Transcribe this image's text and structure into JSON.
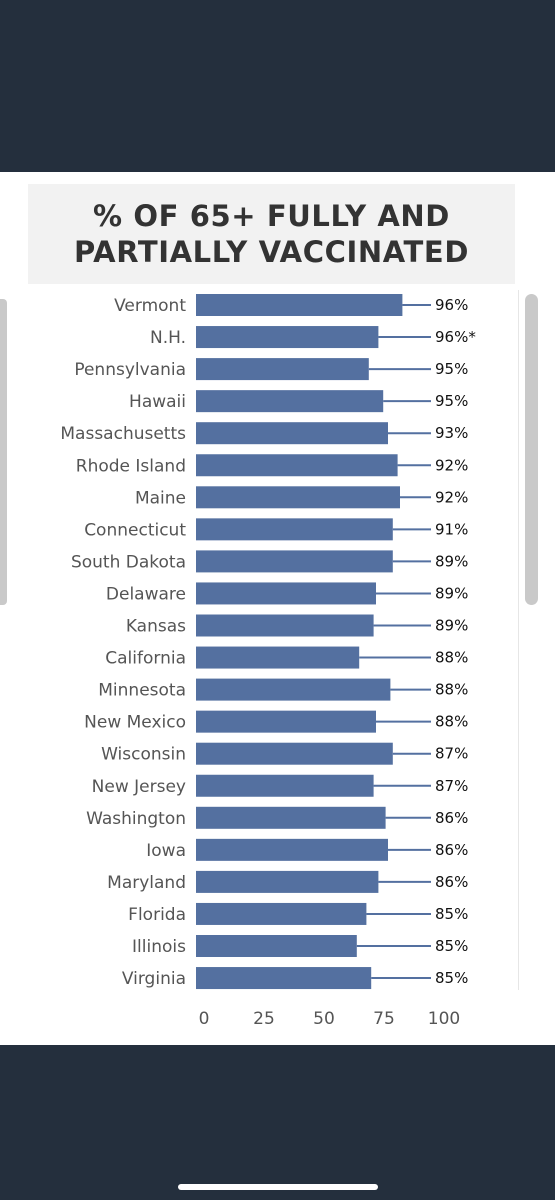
{
  "colors": {
    "background": "#242f3d",
    "panel": "#ffffff",
    "title_box": "#f2f2f2",
    "bar": "#5470a0",
    "scrollbar": "#c9c9c9"
  },
  "chart_data": {
    "type": "bar",
    "orientation": "horizontal",
    "title": "% OF 65+ FULLY AND PARTIALLY VACCINATED",
    "title_lines": [
      "% OF 65+ FULLY AND",
      "PARTIALLY VACCINATED"
    ],
    "categories": [
      "Vermont",
      "N.H.",
      "Pennsylvania",
      "Hawaii",
      "Massachusetts",
      "Rhode Island",
      "Maine",
      "Connecticut",
      "South Dakota",
      "Delaware",
      "Kansas",
      "California",
      "Minnesota",
      "New Mexico",
      "Wisconsin",
      "New Jersey",
      "Washington",
      "Iowa",
      "Maryland",
      "Florida",
      "Illinois",
      "Virginia"
    ],
    "values": [
      86,
      76,
      72,
      78,
      80,
      84,
      85,
      82,
      82,
      75,
      74,
      68,
      81,
      75,
      82,
      74,
      79,
      80,
      76,
      71,
      67,
      73
    ],
    "value_labels": [
      "96%",
      "96%*",
      "95%",
      "95%",
      "93%",
      "92%",
      "92%",
      "91%",
      "89%",
      "89%",
      "89%",
      "88%",
      "88%",
      "88%",
      "87%",
      "87%",
      "86%",
      "86%",
      "86%",
      "85%",
      "85%",
      "85%"
    ],
    "xlim": [
      0,
      105
    ],
    "xticks": [
      0,
      25,
      50,
      75,
      100
    ],
    "xlabel": "",
    "ylabel": "",
    "grid": false,
    "legend": "none"
  }
}
